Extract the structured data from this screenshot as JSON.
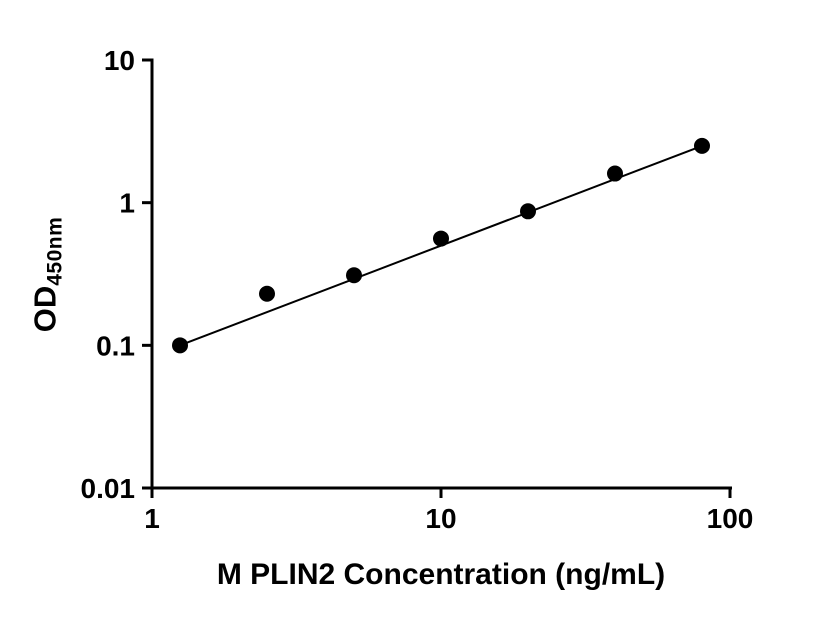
{
  "chart_data": {
    "type": "scatter",
    "title": "",
    "xlabel": "M PLIN2 Concentration (ng/mL)",
    "ylabel": "OD",
    "ylabel_subscript": "450nm",
    "x_scale": "log",
    "y_scale": "log",
    "xlim": [
      1,
      100
    ],
    "ylim": [
      0.01,
      10
    ],
    "x_ticks": [
      1,
      10,
      100
    ],
    "x_tick_labels": [
      "1",
      "10",
      "100"
    ],
    "y_ticks": [
      0.01,
      0.1,
      1,
      10
    ],
    "y_tick_labels": [
      "0.01",
      "0.1",
      "1",
      "10"
    ],
    "x": [
      1.25,
      2.5,
      5,
      10,
      20,
      40,
      80
    ],
    "y": [
      0.1,
      0.23,
      0.31,
      0.56,
      0.87,
      1.6,
      2.5
    ],
    "fit_line": "straight power-law fit from first to last point (log-log)",
    "legend": "none",
    "grid": "off",
    "marker": "filled-circle",
    "marker_color": "#000000",
    "line_color": "#000000",
    "axis_color": "#000000"
  }
}
